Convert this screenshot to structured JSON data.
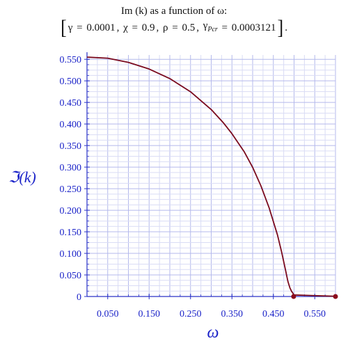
{
  "chart_data": {
    "type": "line",
    "title": "Im (k) as a function of ω:",
    "subtitle": {
      "gamma_label": "γ",
      "gamma": "0.0001",
      "chi_label": "χ",
      "chi": "0.9",
      "rho_label": "ρ",
      "rho": "0.5",
      "gammapcr_label": "γ",
      "gammapcr_sub": "Pcr",
      "gammapcr": "0.0003121"
    },
    "xlabel": "ω",
    "ylabel": "ℑ(k)",
    "xlim": [
      0.0,
      0.6
    ],
    "ylim": [
      0.0,
      0.56
    ],
    "x_ticks": [
      "0.050",
      "0.150",
      "0.250",
      "0.350",
      "0.450",
      "0.550"
    ],
    "y_ticks": [
      "0",
      "0.050",
      "0.100",
      "0.150",
      "0.200",
      "0.250",
      "0.300",
      "0.350",
      "0.400",
      "0.450",
      "0.500",
      "0.550"
    ],
    "grid": true,
    "legend": "none",
    "series": [
      {
        "color": "#7a0a1e",
        "x": [
          0.0,
          0.05,
          0.1,
          0.15,
          0.2,
          0.25,
          0.3,
          0.33,
          0.35,
          0.38,
          0.4,
          0.42,
          0.44,
          0.46,
          0.47,
          0.48,
          0.485,
          0.49,
          0.494,
          0.497,
          0.499,
          0.4995,
          0.5,
          0.502,
          0.55,
          0.6
        ],
        "y": [
          0.555,
          0.5525,
          0.5428,
          0.5275,
          0.5053,
          0.4747,
          0.4335,
          0.402,
          0.3775,
          0.335,
          0.2995,
          0.2565,
          0.205,
          0.1425,
          0.103,
          0.0585,
          0.0355,
          0.02,
          0.012,
          0.008,
          0.004,
          0.003,
          0.004,
          0.0035,
          0.002,
          0.0005
        ]
      }
    ],
    "endpoints": [
      {
        "x": 0.499,
        "y": 0.0
      },
      {
        "x": 0.6,
        "y": 0.0
      }
    ]
  }
}
